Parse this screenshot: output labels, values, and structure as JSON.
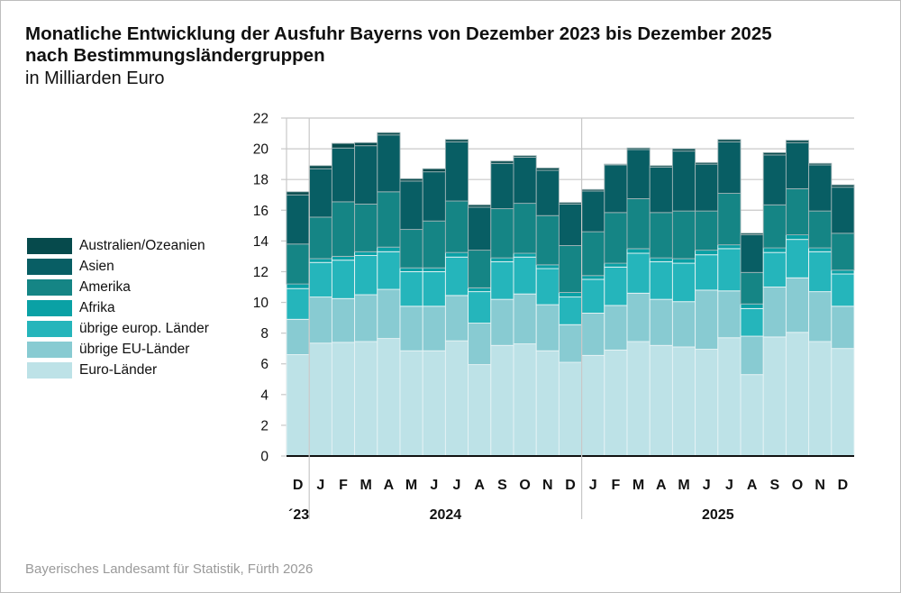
{
  "title_line1": "Monatliche Entwicklung der Ausfuhr Bayerns von Dezember 2023 bis Dezember 2025",
  "title_line2": "nach Bestimmungsländergruppen",
  "subtitle": "in Milliarden Euro",
  "footer": "Bayerisches Landesamt für Statistik, Fürth 2026",
  "chart_data": {
    "type": "bar",
    "stacked": true,
    "title": "Monatliche Entwicklung der Ausfuhr Bayerns von Dezember 2023 bis Dezember 2025 nach Bestimmungsländergruppen",
    "ylabel": "in Milliarden Euro",
    "ylim": [
      0,
      22
    ],
    "yticks": [
      "0",
      "2",
      "4",
      "6",
      "8",
      "10",
      "12",
      "14",
      "16",
      "18",
      "20",
      "22"
    ],
    "grid": true,
    "legend_position": "left",
    "categories": [
      "D",
      "J",
      "F",
      "M",
      "A",
      "M",
      "J",
      "J",
      "A",
      "S",
      "O",
      "N",
      "D",
      "J",
      "F",
      "M",
      "A",
      "M",
      "J",
      "J",
      "A",
      "S",
      "O",
      "N",
      "D"
    ],
    "year_labels": [
      {
        "label": "´23",
        "from": 0,
        "to": 0
      },
      {
        "label": "2024",
        "from": 1,
        "to": 12
      },
      {
        "label": "2025",
        "from": 13,
        "to": 24
      }
    ],
    "series": [
      {
        "name": "Euro-Länder",
        "color": "#bde2e7",
        "values": [
          6.6,
          7.35,
          7.4,
          7.45,
          7.65,
          6.85,
          6.85,
          7.5,
          5.95,
          7.2,
          7.3,
          6.85,
          6.1,
          6.55,
          6.9,
          7.45,
          7.2,
          7.1,
          6.95,
          7.7,
          5.3,
          7.75,
          8.05,
          7.45,
          7.0
        ]
      },
      {
        "name": "übrige EU-Länder",
        "color": "#88cbd2",
        "values": [
          2.3,
          3.0,
          2.85,
          3.05,
          3.2,
          2.9,
          2.9,
          2.95,
          2.7,
          3.0,
          3.25,
          3.0,
          2.45,
          2.75,
          2.9,
          3.15,
          3.0,
          2.95,
          3.85,
          3.05,
          2.5,
          3.25,
          3.55,
          3.25,
          2.75
        ]
      },
      {
        "name": "übrige europ. Länder",
        "color": "#25b5bb",
        "values": [
          2.0,
          2.25,
          2.5,
          2.55,
          2.45,
          2.25,
          2.25,
          2.5,
          2.05,
          2.45,
          2.4,
          2.35,
          1.8,
          2.2,
          2.5,
          2.6,
          2.45,
          2.5,
          2.3,
          2.75,
          1.8,
          2.25,
          2.5,
          2.6,
          2.1
        ]
      },
      {
        "name": "Afrika",
        "color": "#0aa1a5",
        "values": [
          0.3,
          0.25,
          0.25,
          0.25,
          0.3,
          0.25,
          0.25,
          0.3,
          0.25,
          0.25,
          0.25,
          0.25,
          0.3,
          0.25,
          0.25,
          0.3,
          0.25,
          0.3,
          0.3,
          0.25,
          0.3,
          0.3,
          0.3,
          0.25,
          0.25
        ]
      },
      {
        "name": "Amerika",
        "color": "#158585",
        "values": [
          2.6,
          2.7,
          3.55,
          3.1,
          3.6,
          2.5,
          3.05,
          3.35,
          2.45,
          3.2,
          3.25,
          3.2,
          3.05,
          2.85,
          3.3,
          3.25,
          2.95,
          3.1,
          2.55,
          3.35,
          2.05,
          2.8,
          3.0,
          2.4,
          2.4
        ]
      },
      {
        "name": "Asien",
        "color": "#085e64",
        "values": [
          3.2,
          3.15,
          3.5,
          3.8,
          3.7,
          3.15,
          3.2,
          3.85,
          2.8,
          2.95,
          3.0,
          2.95,
          2.7,
          2.65,
          3.1,
          3.2,
          2.95,
          3.9,
          3.05,
          3.35,
          2.45,
          3.25,
          3.0,
          3.0,
          3.0
        ]
      },
      {
        "name": "Australien/Ozeanien",
        "color": "#064a4c",
        "values": [
          0.2,
          0.2,
          0.3,
          0.2,
          0.15,
          0.15,
          0.2,
          0.15,
          0.15,
          0.15,
          0.1,
          0.15,
          0.1,
          0.1,
          0.05,
          0.1,
          0.1,
          0.15,
          0.1,
          0.15,
          0.1,
          0.15,
          0.15,
          0.1,
          0.15
        ]
      }
    ]
  }
}
